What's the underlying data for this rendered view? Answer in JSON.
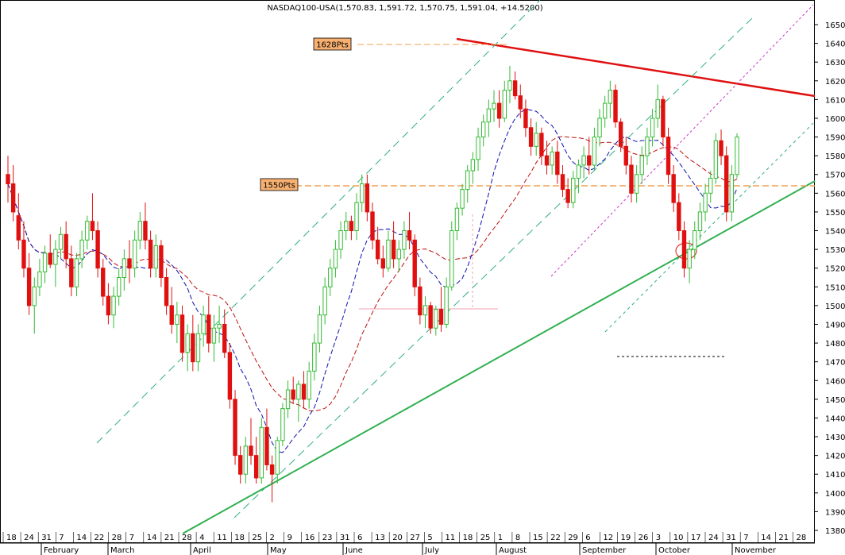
{
  "chart_data": {
    "type": "candlestick",
    "title": "NASDAQ100-USA(1,570.83, 1,591.72, 1,570.75, 1,591.04, +14.5200)",
    "y_axis": {
      "side": "right",
      "ylim": [
        1373,
        1655
      ],
      "ticks": [
        1380,
        1390,
        1400,
        1410,
        1420,
        1430,
        1440,
        1450,
        1460,
        1470,
        1480,
        1490,
        1500,
        1510,
        1520,
        1530,
        1540,
        1550,
        1560,
        1570,
        1580,
        1590,
        1600,
        1610,
        1620,
        1630,
        1640,
        1650
      ]
    },
    "x_day_labels": [
      "18",
      "24",
      "31",
      "7",
      "14",
      "22",
      "28",
      "7",
      "14",
      "21",
      "28",
      "4",
      "11",
      "18",
      "25",
      "2",
      "9",
      "16",
      "23",
      "31",
      "6",
      "13",
      "20",
      "27",
      "5",
      "11",
      "18",
      "25",
      "1",
      "8",
      "15",
      "22",
      "29",
      "6",
      "12",
      "19",
      "26",
      "3",
      "10",
      "17",
      "24",
      "31",
      "7",
      "14",
      "21",
      "28"
    ],
    "x_month_labels": [
      "February",
      "March",
      "April",
      "May",
      "June",
      "July",
      "August",
      "September",
      "October",
      "November"
    ],
    "annotations": [
      {
        "text": "1628Pts",
        "value": 1628
      },
      {
        "text": "1550Pts",
        "value": 1550
      }
    ],
    "colors": {
      "up": "#33bb33",
      "down": "#e01010",
      "ma_fast": "#1010b0",
      "ma_slow": "#c01010",
      "resistance": "#e01010",
      "support": "#30b050",
      "channel": "#30b080",
      "channel2": "#cc33cc",
      "level": "#f0a050",
      "label_bg": "#f7b070"
    },
    "ohlc": [
      [
        1570,
        1580,
        1555,
        1565
      ],
      [
        1565,
        1575,
        1545,
        1550
      ],
      [
        1548,
        1560,
        1530,
        1535
      ],
      [
        1535,
        1545,
        1515,
        1520
      ],
      [
        1520,
        1528,
        1495,
        1500
      ],
      [
        1500,
        1515,
        1485,
        1510
      ],
      [
        1510,
        1525,
        1505,
        1518
      ],
      [
        1518,
        1532,
        1512,
        1528
      ],
      [
        1528,
        1538,
        1520,
        1522
      ],
      [
        1522,
        1535,
        1510,
        1530
      ],
      [
        1530,
        1542,
        1525,
        1538
      ],
      [
        1538,
        1545,
        1520,
        1525
      ],
      [
        1525,
        1532,
        1505,
        1510
      ],
      [
        1510,
        1528,
        1505,
        1525
      ],
      [
        1525,
        1540,
        1520,
        1535
      ],
      [
        1535,
        1548,
        1530,
        1545
      ],
      [
        1545,
        1560,
        1535,
        1540
      ],
      [
        1540,
        1545,
        1515,
        1520
      ],
      [
        1520,
        1525,
        1500,
        1505
      ],
      [
        1505,
        1512,
        1490,
        1495
      ],
      [
        1495,
        1510,
        1488,
        1505
      ],
      [
        1505,
        1520,
        1500,
        1515
      ],
      [
        1515,
        1530,
        1508,
        1525
      ],
      [
        1525,
        1535,
        1512,
        1520
      ],
      [
        1520,
        1540,
        1515,
        1535
      ],
      [
        1535,
        1550,
        1530,
        1545
      ],
      [
        1545,
        1555,
        1530,
        1535
      ],
      [
        1535,
        1540,
        1515,
        1520
      ],
      [
        1520,
        1538,
        1515,
        1532
      ],
      [
        1532,
        1535,
        1510,
        1515
      ],
      [
        1515,
        1520,
        1495,
        1500
      ],
      [
        1500,
        1510,
        1485,
        1490
      ],
      [
        1490,
        1502,
        1480,
        1495
      ],
      [
        1495,
        1500,
        1470,
        1475
      ],
      [
        1475,
        1490,
        1465,
        1485
      ],
      [
        1485,
        1495,
        1465,
        1470
      ],
      [
        1470,
        1490,
        1465,
        1485
      ],
      [
        1485,
        1500,
        1478,
        1495
      ],
      [
        1495,
        1505,
        1475,
        1480
      ],
      [
        1480,
        1495,
        1470,
        1488
      ],
      [
        1488,
        1500,
        1480,
        1490
      ],
      [
        1490,
        1498,
        1472,
        1475
      ],
      [
        1475,
        1480,
        1445,
        1450
      ],
      [
        1450,
        1455,
        1415,
        1420
      ],
      [
        1420,
        1425,
        1405,
        1410
      ],
      [
        1410,
        1430,
        1405,
        1425
      ],
      [
        1425,
        1440,
        1415,
        1420
      ],
      [
        1420,
        1430,
        1405,
        1408
      ],
      [
        1408,
        1440,
        1405,
        1435
      ],
      [
        1435,
        1445,
        1412,
        1415
      ],
      [
        1415,
        1420,
        1395,
        1410
      ],
      [
        1410,
        1430,
        1405,
        1428
      ],
      [
        1428,
        1448,
        1425,
        1445
      ],
      [
        1445,
        1460,
        1440,
        1455
      ],
      [
        1455,
        1462,
        1448,
        1450
      ],
      [
        1450,
        1460,
        1438,
        1458
      ],
      [
        1458,
        1465,
        1445,
        1450
      ],
      [
        1450,
        1470,
        1445,
        1465
      ],
      [
        1465,
        1485,
        1460,
        1480
      ],
      [
        1480,
        1500,
        1475,
        1495
      ],
      [
        1495,
        1515,
        1490,
        1510
      ],
      [
        1510,
        1525,
        1505,
        1520
      ],
      [
        1520,
        1535,
        1515,
        1530
      ],
      [
        1530,
        1545,
        1525,
        1540
      ],
      [
        1540,
        1550,
        1535,
        1545
      ],
      [
        1545,
        1548,
        1535,
        1540
      ],
      [
        1540,
        1560,
        1535,
        1555
      ],
      [
        1555,
        1570,
        1550,
        1565
      ],
      [
        1565,
        1570,
        1545,
        1550
      ],
      [
        1550,
        1555,
        1530,
        1535
      ],
      [
        1535,
        1542,
        1522,
        1525
      ],
      [
        1525,
        1532,
        1515,
        1520
      ],
      [
        1520,
        1540,
        1518,
        1535
      ],
      [
        1535,
        1545,
        1520,
        1525
      ],
      [
        1525,
        1535,
        1518,
        1530
      ],
      [
        1530,
        1545,
        1525,
        1540
      ],
      [
        1540,
        1550,
        1530,
        1535
      ],
      [
        1535,
        1538,
        1505,
        1510
      ],
      [
        1510,
        1515,
        1490,
        1495
      ],
      [
        1495,
        1505,
        1488,
        1500
      ],
      [
        1500,
        1502,
        1485,
        1488
      ],
      [
        1488,
        1500,
        1484,
        1498
      ],
      [
        1498,
        1510,
        1486,
        1490
      ],
      [
        1490,
        1515,
        1488,
        1510
      ],
      [
        1510,
        1545,
        1508,
        1540
      ],
      [
        1540,
        1555,
        1535,
        1552
      ],
      [
        1552,
        1565,
        1548,
        1562
      ],
      [
        1562,
        1575,
        1555,
        1572
      ],
      [
        1572,
        1582,
        1565,
        1578
      ],
      [
        1578,
        1595,
        1572,
        1590
      ],
      [
        1590,
        1602,
        1585,
        1598
      ],
      [
        1598,
        1610,
        1590,
        1605
      ],
      [
        1605,
        1615,
        1598,
        1608
      ],
      [
        1608,
        1615,
        1595,
        1600
      ],
      [
        1600,
        1620,
        1598,
        1615
      ],
      [
        1615,
        1628,
        1608,
        1620
      ],
      [
        1620,
        1625,
        1610,
        1612
      ],
      [
        1612,
        1618,
        1600,
        1605
      ],
      [
        1605,
        1610,
        1590,
        1595
      ],
      [
        1595,
        1600,
        1580,
        1585
      ],
      [
        1585,
        1598,
        1580,
        1592
      ],
      [
        1592,
        1595,
        1575,
        1580
      ],
      [
        1580,
        1588,
        1570,
        1575
      ],
      [
        1575,
        1585,
        1570,
        1582
      ],
      [
        1582,
        1588,
        1565,
        1570
      ],
      [
        1570,
        1575,
        1558,
        1562
      ],
      [
        1562,
        1568,
        1552,
        1555
      ],
      [
        1555,
        1572,
        1552,
        1568
      ],
      [
        1568,
        1578,
        1560,
        1575
      ],
      [
        1575,
        1585,
        1568,
        1580
      ],
      [
        1580,
        1590,
        1570,
        1575
      ],
      [
        1575,
        1595,
        1572,
        1590
      ],
      [
        1590,
        1605,
        1585,
        1600
      ],
      [
        1600,
        1612,
        1595,
        1608
      ],
      [
        1608,
        1620,
        1600,
        1615
      ],
      [
        1615,
        1618,
        1595,
        1598
      ],
      [
        1598,
        1600,
        1582,
        1585
      ],
      [
        1585,
        1590,
        1570,
        1575
      ],
      [
        1575,
        1580,
        1555,
        1560
      ],
      [
        1560,
        1575,
        1555,
        1570
      ],
      [
        1570,
        1585,
        1565,
        1580
      ],
      [
        1580,
        1595,
        1575,
        1590
      ],
      [
        1590,
        1605,
        1585,
        1600
      ],
      [
        1600,
        1618,
        1595,
        1610
      ],
      [
        1610,
        1612,
        1585,
        1590
      ],
      [
        1590,
        1595,
        1565,
        1570
      ],
      [
        1570,
        1575,
        1550,
        1555
      ],
      [
        1555,
        1560,
        1535,
        1540
      ],
      [
        1540,
        1545,
        1515,
        1520
      ],
      [
        1520,
        1535,
        1512,
        1530
      ],
      [
        1530,
        1545,
        1525,
        1540
      ],
      [
        1540,
        1555,
        1535,
        1550
      ],
      [
        1550,
        1565,
        1545,
        1560
      ],
      [
        1560,
        1572,
        1555,
        1568
      ],
      [
        1568,
        1592,
        1565,
        1588
      ],
      [
        1588,
        1594,
        1575,
        1580
      ],
      [
        1580,
        1585,
        1545,
        1550
      ],
      [
        1550,
        1575,
        1545,
        1570
      ],
      [
        1570,
        1592,
        1568,
        1590
      ]
    ]
  }
}
